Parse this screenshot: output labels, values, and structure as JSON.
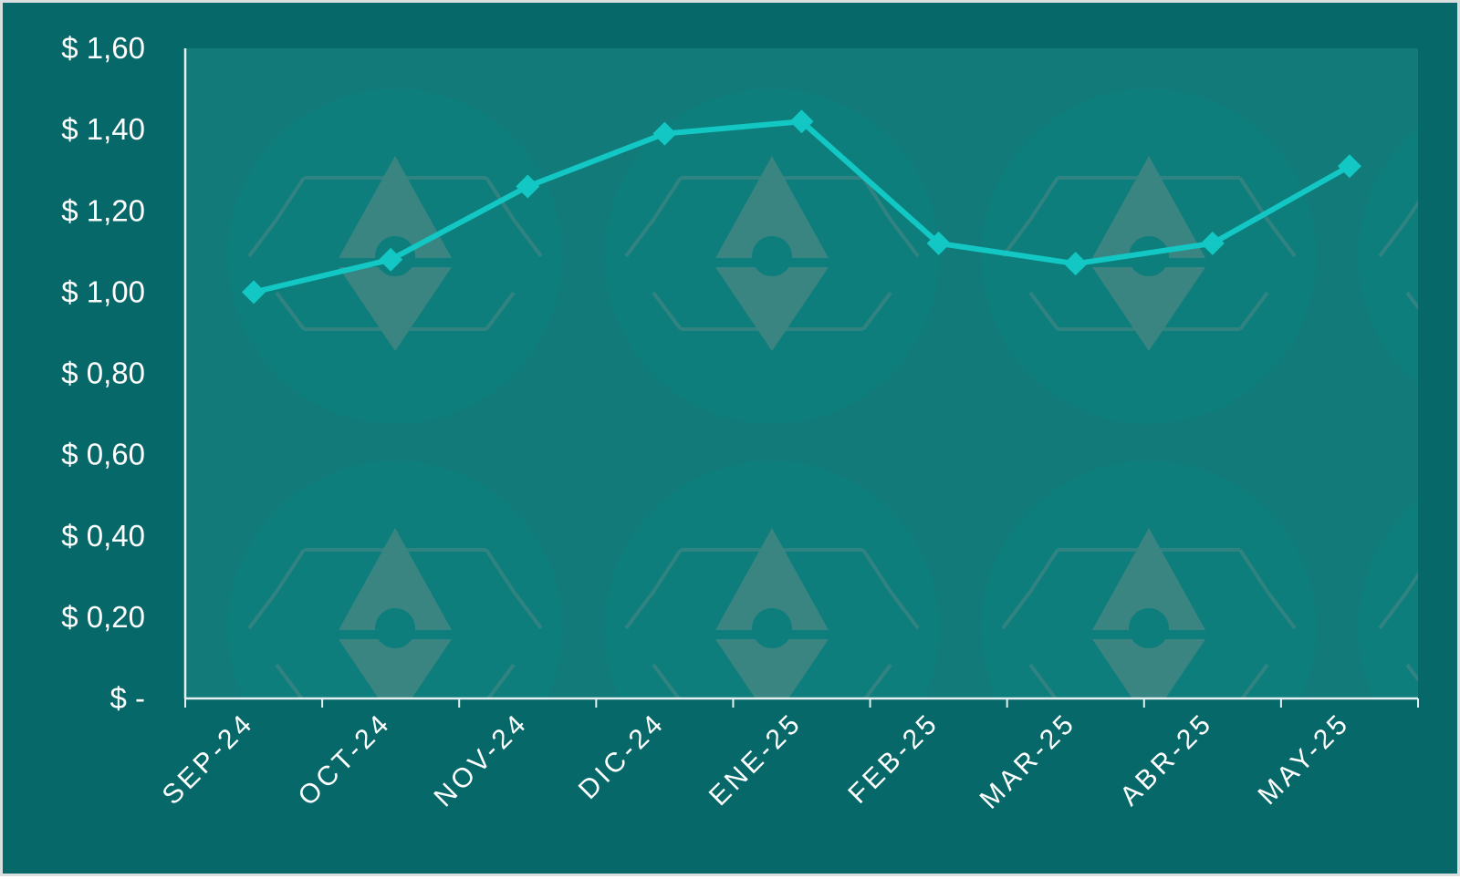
{
  "colors": {
    "background": "#07686a",
    "plot_area": "#137a7a",
    "watermark_circle": "#0d7e7b",
    "watermark_glyph": "#3a8582",
    "line": "#12c7c4",
    "axis": "#e6f0f0",
    "text": "#ffffff"
  },
  "chart_data": {
    "type": "line",
    "categories": [
      "SEP-24",
      "OCT-24",
      "NOV-24",
      "DIC-24",
      "ENE-25",
      "FEB-25",
      "MAR-25",
      "ABR-25",
      "MAY-25"
    ],
    "series": [
      {
        "values": [
          1.0,
          1.08,
          1.26,
          1.39,
          1.42,
          1.12,
          1.07,
          1.12,
          1.31
        ],
        "marker": "diamond"
      }
    ],
    "y_tick_labels": [
      "$ -",
      "$ 0,20",
      "$ 0,40",
      "$ 0,60",
      "$ 0,80",
      "$ 1,00",
      "$ 1,20",
      "$ 1,40",
      "$ 1,60"
    ],
    "y_ticks": [
      0,
      0.2,
      0.4,
      0.6,
      0.8,
      1.0,
      1.2,
      1.4,
      1.6
    ],
    "ylim": [
      0,
      1.6
    ],
    "grid": false,
    "legend": "none",
    "x_tick_rotation": "-45deg",
    "background_watermark": "ethereum-logo-pattern"
  }
}
